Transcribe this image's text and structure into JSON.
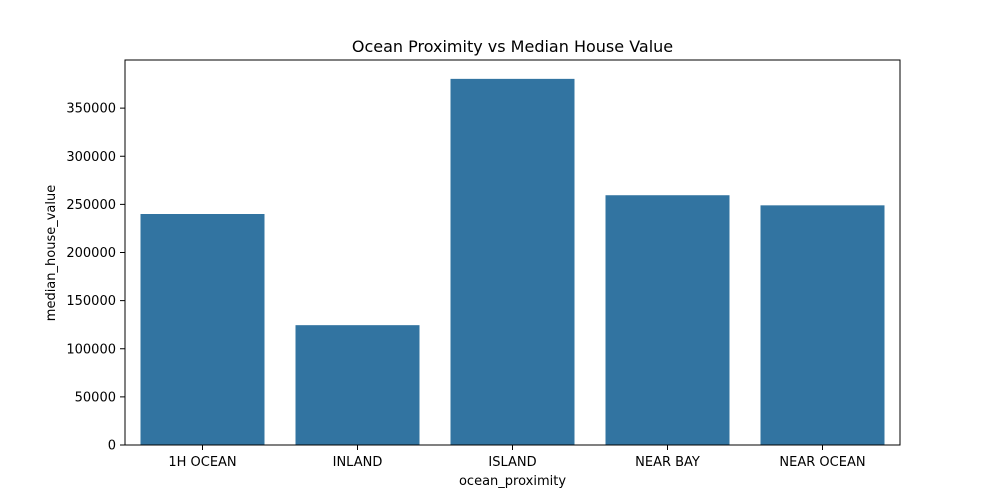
{
  "chart_data": {
    "type": "bar",
    "title": "Ocean Proximity vs Median House Value",
    "xlabel": "ocean_proximity",
    "ylabel": "median_house_value",
    "categories": [
      "1H OCEAN",
      "INLAND",
      "ISLAND",
      "NEAR BAY",
      "NEAR OCEAN"
    ],
    "values": [
      240000,
      124500,
      380400,
      259500,
      249000
    ],
    "ylim": [
      0,
      400000
    ],
    "yticks": [
      0,
      50000,
      100000,
      150000,
      200000,
      250000,
      300000,
      350000
    ],
    "ytick_labels": [
      "0",
      "50000",
      "100000",
      "150000",
      "200000",
      "250000",
      "300000",
      "350000"
    ],
    "bar_color": "#3274a1",
    "grid": false,
    "legend": "none"
  }
}
